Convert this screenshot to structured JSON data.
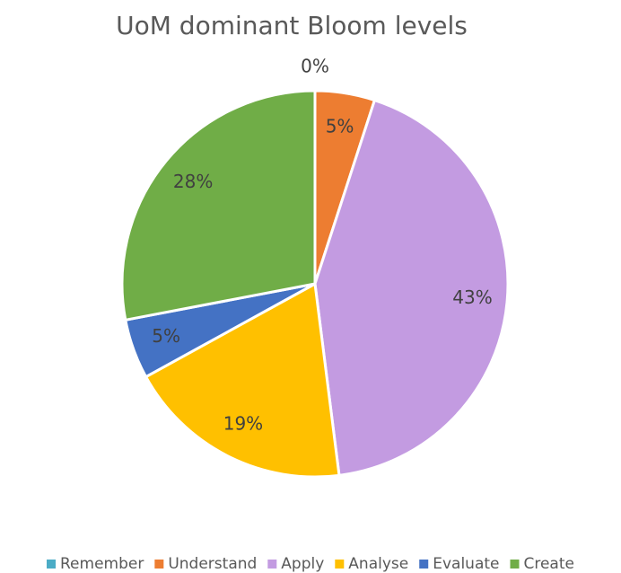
{
  "chart_data": {
    "type": "pie",
    "title": "UoM dominant Bloom levels",
    "categories": [
      "Remember",
      "Understand",
      "Apply",
      "Analyse",
      "Evaluate",
      "Create"
    ],
    "values": [
      0,
      5,
      43,
      19,
      5,
      28
    ],
    "value_labels": [
      "0%",
      "5%",
      "43%",
      "19%",
      "5%",
      "28%"
    ],
    "colors": [
      "#4bacc6",
      "#ed7d31",
      "#c39be1",
      "#ffc000",
      "#4472c4",
      "#70ad47"
    ],
    "legend": "bottom"
  }
}
